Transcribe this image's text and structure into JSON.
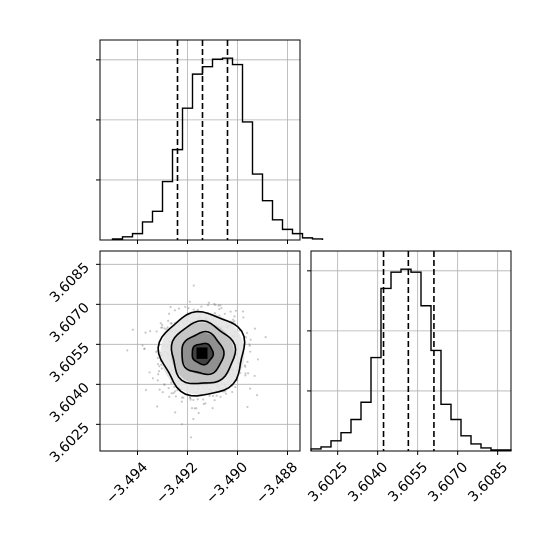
{
  "chart_data": [
    {
      "id": "x_marginal",
      "type": "histogram",
      "x_range": [
        -3.4955,
        -3.4875
      ],
      "x_ticks": [
        -3.494,
        -3.492,
        -3.49,
        -3.488
      ],
      "bin_width": 0.0004,
      "bin_start": -3.495,
      "counts": [
        1,
        3,
        6,
        17,
        27,
        55,
        85,
        124,
        156,
        163,
        170,
        171,
        165,
        111,
        62,
        37,
        19,
        10,
        6,
        2,
        1
      ],
      "quantiles": [
        -3.4924,
        -3.4914,
        -3.4904
      ],
      "grid": true
    },
    {
      "id": "y_marginal",
      "type": "histogram",
      "x_range": [
        3.6015,
        3.609
      ],
      "x_ticks": [
        3.6025,
        3.604,
        3.6055,
        3.607,
        3.6085
      ],
      "x_tick_labels": [
        "3.6025",
        "3.6040",
        "3.6055",
        "3.6070",
        "3.6085"
      ],
      "bin_width": 0.000375,
      "bin_start": 3.6015,
      "counts": [
        2,
        4,
        10,
        18,
        31,
        48,
        92,
        160,
        176,
        179,
        176,
        143,
        99,
        46,
        31,
        15,
        7,
        3,
        1,
        1
      ],
      "quantiles": [
        3.60422,
        3.60515,
        3.60611
      ],
      "grid": true
    },
    {
      "id": "joint",
      "type": "scatter",
      "x_range": [
        -3.4955,
        -3.4875
      ],
      "y_range": [
        3.6015,
        3.609
      ],
      "x_ticks": [
        -3.494,
        -3.492,
        -3.49,
        -3.488
      ],
      "x_tick_labels": [
        "−3.494",
        "−3.492",
        "−3.490",
        "−3.488"
      ],
      "y_ticks": [
        3.6025,
        3.604,
        3.6055,
        3.607,
        3.6085
      ],
      "y_tick_labels": [
        "3.6025",
        "3.6040",
        "3.6055",
        "3.6070",
        "3.6085"
      ],
      "center": [
        -3.4914,
        3.60515
      ],
      "sigma": [
        0.0008,
        0.00078
      ],
      "contour_levels_sigma": [
        0.5,
        1.0,
        1.5,
        2.0
      ],
      "grid": true
    }
  ]
}
